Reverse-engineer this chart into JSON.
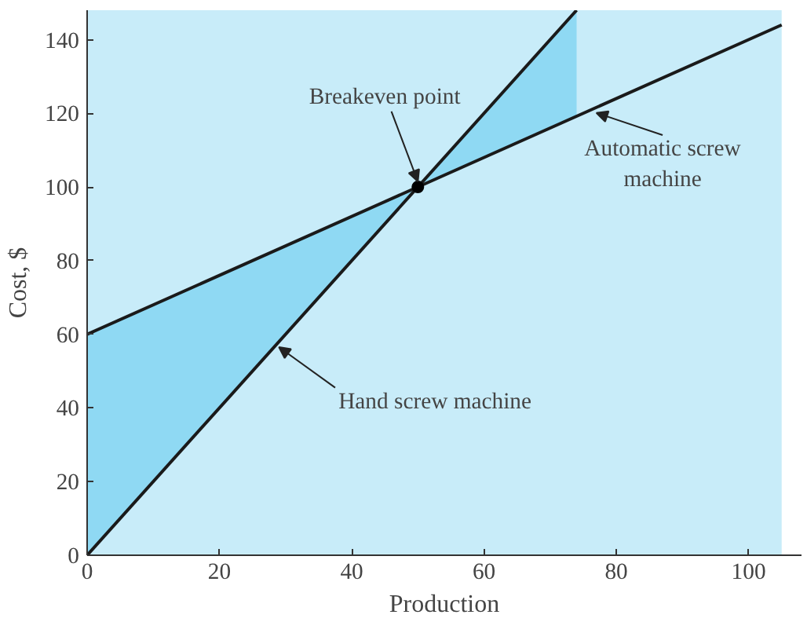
{
  "chart_data": {
    "type": "line",
    "xlabel": "Production",
    "ylabel": "Cost, $",
    "xlim": [
      0,
      108
    ],
    "ylim": [
      0,
      148
    ],
    "xticks": [
      0,
      20,
      40,
      60,
      80,
      100
    ],
    "yticks": [
      0,
      20,
      40,
      60,
      80,
      100,
      120,
      140
    ],
    "grid": false,
    "line_style": "solid",
    "series": [
      {
        "color": "#1a1a1a",
        "x": [
          0,
          74
        ],
        "values": [
          0,
          148
        ]
      },
      {
        "color": "#1a1a1a",
        "x": [
          0,
          105
        ],
        "values": [
          60,
          144
        ]
      },
      {
        "type": "scatter",
        "color": "#000000",
        "x": [
          50
        ],
        "values": [
          100
        ]
      }
    ],
    "bands": [
      {
        "axis": "x",
        "from": 0,
        "to": 105,
        "color": "#c8ecf9"
      }
    ],
    "annotations": [
      {
        "text": "Breakeven point",
        "x": 50,
        "y": 100
      },
      {
        "text": "Automatic screw\nmachine",
        "x": 77,
        "y": 121.6
      },
      {
        "text": "Hand screw machine",
        "x": 29,
        "y": 58
      }
    ]
  }
}
